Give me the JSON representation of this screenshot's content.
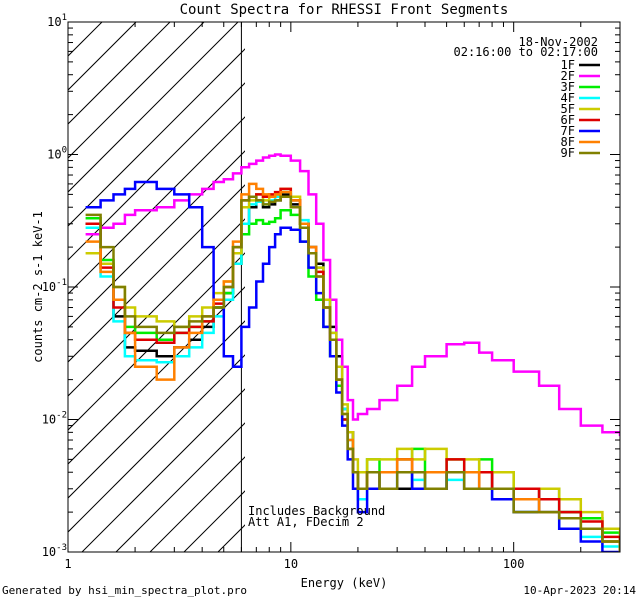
{
  "chart_data": {
    "type": "line",
    "title": "Count Spectra for RHESSI Front Segments",
    "xlabel": "Energy (keV)",
    "ylabel": "counts cm-2 s-1 keV-1",
    "xscale": "log",
    "yscale": "log",
    "xlim": [
      1,
      300
    ],
    "ylim": [
      0.001,
      10
    ],
    "x_tick_labels": [
      "1",
      "10",
      "100"
    ],
    "y_tick_labels": [
      {
        "value": 0.001,
        "base": "10",
        "exp": "-3"
      },
      {
        "value": 0.01,
        "base": "10",
        "exp": "-2"
      },
      {
        "value": 0.1,
        "base": "10",
        "exp": "-1"
      },
      {
        "value": 1,
        "base": "10",
        "exp": "0"
      },
      {
        "value": 10,
        "base": "10",
        "exp": "1"
      }
    ],
    "hatched_region_keV": [
      1,
      6
    ],
    "vertical_line_keV": 6,
    "date": "18-Nov-2002",
    "time_range": "02:16:00 to 02:17:00",
    "annotation": [
      "Includes Background",
      "Att A1, FDecim 2"
    ],
    "legend_placement": "top-right",
    "series": [
      {
        "name": "1F",
        "color": "#000000",
        "x": [
          1.2,
          1.4,
          1.6,
          1.8,
          2.0,
          2.5,
          3.0,
          3.5,
          4.0,
          4.5,
          5.0,
          5.5,
          6.0,
          6.5,
          7.0,
          7.5,
          8.0,
          8.5,
          9.0,
          10.0,
          11.0,
          12.0,
          13.0,
          14.0,
          15.0,
          16.0,
          17.0,
          18.0,
          19.0,
          20.0,
          22,
          25,
          30,
          35,
          40,
          50,
          60,
          70,
          80,
          100,
          130,
          160,
          200,
          250,
          300
        ],
        "y": [
          0.3,
          0.15,
          0.06,
          0.035,
          0.033,
          0.03,
          0.035,
          0.04,
          0.05,
          0.07,
          0.09,
          0.15,
          0.3,
          0.4,
          0.45,
          0.4,
          0.42,
          0.45,
          0.5,
          0.42,
          0.3,
          0.2,
          0.15,
          0.08,
          0.05,
          0.03,
          0.012,
          0.008,
          0.004,
          0.003,
          0.004,
          0.003,
          0.003,
          0.004,
          0.003,
          0.004,
          0.003,
          0.004,
          0.003,
          0.002,
          0.003,
          0.002,
          0.0015,
          0.0012,
          0.001
        ]
      },
      {
        "name": "2F",
        "color": "#ff00ff",
        "x": [
          1.2,
          1.4,
          1.6,
          1.8,
          2.0,
          2.5,
          3.0,
          3.5,
          4.0,
          4.5,
          5.0,
          5.5,
          6.0,
          6.5,
          7.0,
          7.5,
          8.0,
          8.5,
          9.0,
          10.0,
          11.0,
          12.0,
          13.0,
          14.0,
          15.0,
          16.0,
          17.0,
          18.0,
          19.0,
          20.0,
          22,
          25,
          30,
          35,
          40,
          50,
          60,
          70,
          80,
          100,
          130,
          160,
          200,
          250,
          300
        ],
        "y": [
          0.25,
          0.28,
          0.3,
          0.35,
          0.38,
          0.4,
          0.45,
          0.5,
          0.55,
          0.62,
          0.65,
          0.72,
          0.8,
          0.85,
          0.9,
          0.95,
          0.98,
          1.0,
          0.98,
          0.9,
          0.75,
          0.5,
          0.3,
          0.16,
          0.08,
          0.04,
          0.025,
          0.014,
          0.01,
          0.011,
          0.012,
          0.014,
          0.018,
          0.025,
          0.03,
          0.037,
          0.038,
          0.032,
          0.028,
          0.023,
          0.018,
          0.012,
          0.009,
          0.008,
          0.0075
        ]
      },
      {
        "name": "3F",
        "color": "#00ee00",
        "x": [
          1.2,
          1.4,
          1.6,
          1.8,
          2.0,
          2.5,
          3.0,
          3.5,
          4.0,
          4.5,
          5.0,
          5.5,
          6.0,
          6.5,
          7.0,
          7.5,
          8.0,
          8.5,
          9.0,
          10.0,
          11.0,
          12.0,
          13.0,
          14.0,
          15.0,
          16.0,
          17.0,
          18.0,
          19.0,
          20.0,
          22,
          25,
          30,
          35,
          40,
          50,
          60,
          70,
          80,
          100,
          130,
          160,
          200,
          250,
          300
        ],
        "y": [
          0.33,
          0.16,
          0.08,
          0.05,
          0.045,
          0.04,
          0.045,
          0.05,
          0.055,
          0.07,
          0.09,
          0.15,
          0.25,
          0.3,
          0.32,
          0.3,
          0.31,
          0.33,
          0.38,
          0.35,
          0.22,
          0.12,
          0.08,
          0.05,
          0.03,
          0.018,
          0.01,
          0.006,
          0.004,
          0.003,
          0.005,
          0.004,
          0.005,
          0.006,
          0.004,
          0.005,
          0.004,
          0.005,
          0.004,
          0.003,
          0.003,
          0.002,
          0.0018,
          0.0014,
          0.0011
        ]
      },
      {
        "name": "4F",
        "color": "#00ffff",
        "x": [
          1.2,
          1.4,
          1.6,
          1.8,
          2.0,
          2.5,
          3.0,
          3.5,
          4.0,
          4.5,
          5.0,
          5.5,
          6.0,
          6.5,
          7.0,
          7.5,
          8.0,
          8.5,
          9.0,
          10.0,
          11.0,
          12.0,
          13.0,
          14.0,
          15.0,
          16.0,
          17.0,
          18.0,
          19.0,
          20.0,
          22,
          25,
          30,
          35,
          40,
          50,
          60,
          70,
          80,
          100,
          130,
          160,
          200,
          250,
          300
        ],
        "y": [
          0.28,
          0.12,
          0.055,
          0.03,
          0.028,
          0.027,
          0.03,
          0.035,
          0.045,
          0.06,
          0.08,
          0.15,
          0.3,
          0.42,
          0.44,
          0.42,
          0.45,
          0.48,
          0.52,
          0.45,
          0.32,
          0.2,
          0.14,
          0.08,
          0.045,
          0.025,
          0.012,
          0.007,
          0.004,
          0.0025,
          0.003,
          0.003,
          0.004,
          0.0035,
          0.003,
          0.0035,
          0.003,
          0.003,
          0.0025,
          0.002,
          0.002,
          0.0015,
          0.0013,
          0.0011,
          0.001
        ]
      },
      {
        "name": "5F",
        "color": "#cccc00",
        "x": [
          1.2,
          1.4,
          1.6,
          1.8,
          2.0,
          2.5,
          3.0,
          3.5,
          4.0,
          4.5,
          5.0,
          5.5,
          6.0,
          6.5,
          7.0,
          7.5,
          8.0,
          8.5,
          9.0,
          10.0,
          11.0,
          12.0,
          13.0,
          14.0,
          15.0,
          16.0,
          17.0,
          18.0,
          19.0,
          20.0,
          22,
          25,
          30,
          35,
          40,
          50,
          60,
          70,
          80,
          100,
          130,
          160,
          200,
          250,
          300
        ],
        "y": [
          0.18,
          0.15,
          0.1,
          0.07,
          0.06,
          0.055,
          0.05,
          0.06,
          0.07,
          0.09,
          0.11,
          0.18,
          0.4,
          0.45,
          0.5,
          0.45,
          0.48,
          0.5,
          0.55,
          0.48,
          0.3,
          0.2,
          0.14,
          0.08,
          0.045,
          0.025,
          0.013,
          0.008,
          0.005,
          0.004,
          0.005,
          0.005,
          0.006,
          0.005,
          0.006,
          0.005,
          0.005,
          0.004,
          0.004,
          0.003,
          0.003,
          0.0025,
          0.002,
          0.0015,
          0.0012
        ]
      },
      {
        "name": "6F",
        "color": "#dd0000",
        "x": [
          1.2,
          1.4,
          1.6,
          1.8,
          2.0,
          2.5,
          3.0,
          3.5,
          4.0,
          4.5,
          5.0,
          5.5,
          6.0,
          6.5,
          7.0,
          7.5,
          8.0,
          8.5,
          9.0,
          10.0,
          11.0,
          12.0,
          13.0,
          14.0,
          15.0,
          16.0,
          17.0,
          18.0,
          19.0,
          20.0,
          22,
          25,
          30,
          35,
          40,
          50,
          60,
          70,
          80,
          100,
          130,
          160,
          200,
          250,
          300
        ],
        "y": [
          0.3,
          0.14,
          0.07,
          0.045,
          0.04,
          0.038,
          0.045,
          0.05,
          0.055,
          0.075,
          0.1,
          0.2,
          0.45,
          0.48,
          0.5,
          0.48,
          0.5,
          0.52,
          0.55,
          0.45,
          0.3,
          0.2,
          0.13,
          0.07,
          0.04,
          0.02,
          0.01,
          0.006,
          0.004,
          0.003,
          0.004,
          0.004,
          0.005,
          0.004,
          0.004,
          0.005,
          0.004,
          0.004,
          0.003,
          0.003,
          0.0025,
          0.002,
          0.0017,
          0.0013,
          0.001
        ]
      },
      {
        "name": "7F",
        "color": "#0000ff",
        "x": [
          1.2,
          1.4,
          1.6,
          1.8,
          2.0,
          2.5,
          3.0,
          3.5,
          4.0,
          4.5,
          5.0,
          5.5,
          6.0,
          6.5,
          7.0,
          7.5,
          8.0,
          8.5,
          9.0,
          10.0,
          11.0,
          12.0,
          13.0,
          14.0,
          15.0,
          16.0,
          17.0,
          18.0,
          19.0,
          20.0,
          22,
          25,
          30,
          35,
          40,
          50,
          60,
          70,
          80,
          100,
          130,
          160,
          200,
          250,
          300
        ],
        "y": [
          0.4,
          0.45,
          0.5,
          0.55,
          0.62,
          0.55,
          0.5,
          0.4,
          0.2,
          0.08,
          0.03,
          0.025,
          0.05,
          0.07,
          0.11,
          0.15,
          0.2,
          0.25,
          0.28,
          0.27,
          0.22,
          0.14,
          0.09,
          0.05,
          0.03,
          0.016,
          0.009,
          0.005,
          0.003,
          0.002,
          0.003,
          0.003,
          0.004,
          0.003,
          0.003,
          0.004,
          0.003,
          0.003,
          0.0025,
          0.002,
          0.002,
          0.0015,
          0.0012,
          0.001,
          0.001
        ]
      },
      {
        "name": "8F",
        "color": "#ff8000",
        "x": [
          1.2,
          1.4,
          1.6,
          1.8,
          2.0,
          2.5,
          3.0,
          3.5,
          4.0,
          4.5,
          5.0,
          5.5,
          6.0,
          6.5,
          7.0,
          7.5,
          8.0,
          8.5,
          9.0,
          10.0,
          11.0,
          12.0,
          13.0,
          14.0,
          15.0,
          16.0,
          17.0,
          18.0,
          19.0,
          20.0,
          22,
          25,
          30,
          35,
          40,
          50,
          60,
          70,
          80,
          100,
          130,
          160,
          200,
          250,
          300
        ],
        "y": [
          0.22,
          0.13,
          0.08,
          0.045,
          0.025,
          0.02,
          0.035,
          0.045,
          0.06,
          0.08,
          0.11,
          0.22,
          0.5,
          0.6,
          0.55,
          0.5,
          0.48,
          0.5,
          0.52,
          0.45,
          0.3,
          0.2,
          0.12,
          0.07,
          0.04,
          0.02,
          0.011,
          0.007,
          0.004,
          0.003,
          0.004,
          0.004,
          0.005,
          0.004,
          0.004,
          0.004,
          0.004,
          0.003,
          0.003,
          0.0025,
          0.002,
          0.0018,
          0.0015,
          0.0012,
          0.001
        ]
      },
      {
        "name": "9F",
        "color": "#808000",
        "x": [
          1.2,
          1.4,
          1.6,
          1.8,
          2.0,
          2.5,
          3.0,
          3.5,
          4.0,
          4.5,
          5.0,
          5.5,
          6.0,
          6.5,
          7.0,
          7.5,
          8.0,
          8.5,
          9.0,
          10.0,
          11.0,
          12.0,
          13.0,
          14.0,
          15.0,
          16.0,
          17.0,
          18.0,
          19.0,
          20.0,
          22,
          25,
          30,
          35,
          40,
          50,
          60,
          70,
          80,
          100,
          130,
          160,
          200,
          250,
          300
        ],
        "y": [
          0.35,
          0.2,
          0.1,
          0.06,
          0.05,
          0.045,
          0.05,
          0.055,
          0.06,
          0.07,
          0.1,
          0.2,
          0.45,
          0.48,
          0.45,
          0.42,
          0.44,
          0.45,
          0.48,
          0.4,
          0.28,
          0.18,
          0.12,
          0.07,
          0.04,
          0.02,
          0.011,
          0.006,
          0.004,
          0.003,
          0.004,
          0.003,
          0.004,
          0.004,
          0.003,
          0.004,
          0.003,
          0.003,
          0.003,
          0.002,
          0.002,
          0.0018,
          0.0015,
          0.0012,
          0.001
        ]
      }
    ]
  },
  "footer": {
    "generated_by": "Generated by hsi_min_spectra_plot.pro",
    "timestamp": "10-Apr-2023 20:14"
  }
}
